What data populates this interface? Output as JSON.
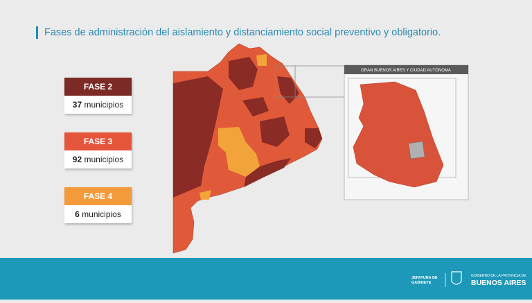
{
  "header": {
    "title": "Fases de administración del aislamiento y distanciamiento social preventivo y obligatorio."
  },
  "legend": [
    {
      "label": "FASE 2",
      "count": "37",
      "unit": "municipios"
    },
    {
      "label": "FASE 3",
      "count": "92",
      "unit": "municipios"
    },
    {
      "label": "FASE 4",
      "count": "6",
      "unit": "municipios"
    }
  ],
  "inset": {
    "title": "GRAN BUENOS AIRES Y CIUDAD AUTÓNOMA"
  },
  "footer": {
    "left_logo": [
      "JEFATURA DE",
      "GABINETE"
    ],
    "right_logo_small": "GOBIERNO DE LA PROVINCIA DE",
    "right_logo_big": "BUENOS AIRES"
  }
}
